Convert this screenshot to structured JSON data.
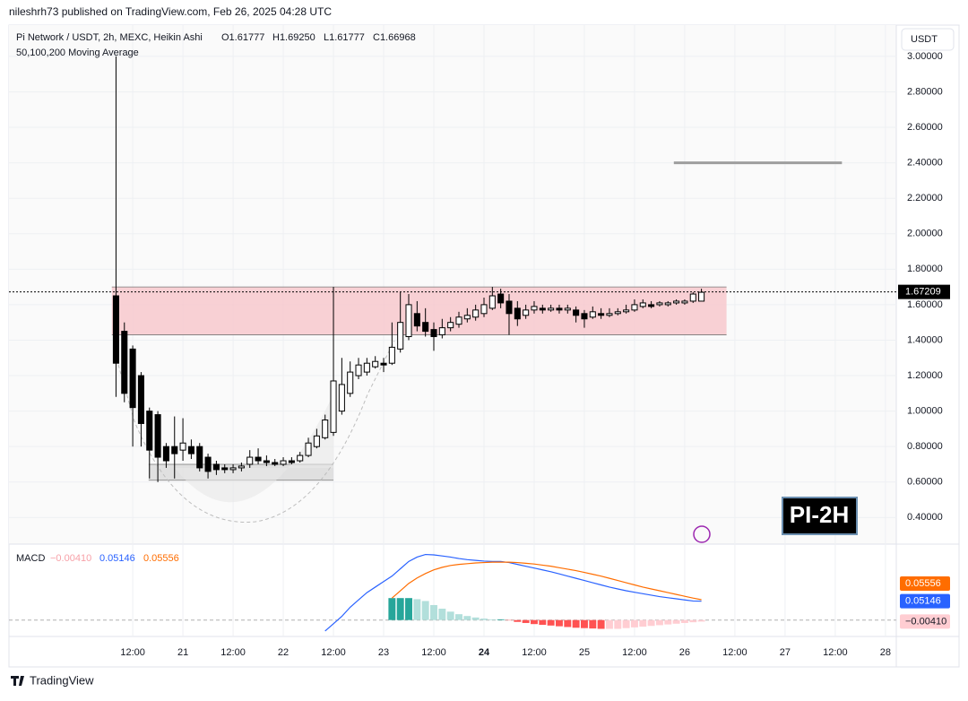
{
  "header": "nileshrh73 published on TradingView.com, Feb 26, 2025 04:28 UTC",
  "footer": "TradingView",
  "chart_data": {
    "type": "candlestick",
    "symbol": "Pi Network / USDT, 2h, MEXC, Heikin Ashi",
    "ohlc_legend": [
      "O1.61777",
      "H1.69250",
      "L1.61777",
      "C1.66968"
    ],
    "indicator": "50,100,200 Moving Average",
    "currency": "USDT",
    "badge": "PI-2H",
    "up_color": "#ffffff",
    "down_color": "#000000",
    "ohlc": [
      [
        1.65,
        3.0,
        1.08,
        1.27
      ],
      [
        1.45,
        1.5,
        1.05,
        1.1
      ],
      [
        1.35,
        1.37,
        0.8,
        1.02
      ],
      [
        1.2,
        1.22,
        0.8,
        0.93
      ],
      [
        1.0,
        1.02,
        0.62,
        0.78
      ],
      [
        0.98,
        1.0,
        0.6,
        0.74
      ],
      [
        0.8,
        0.82,
        0.68,
        0.72
      ],
      [
        0.8,
        0.97,
        0.62,
        0.76
      ],
      [
        0.78,
        0.96,
        0.72,
        0.82
      ],
      [
        0.8,
        0.84,
        0.73,
        0.76
      ],
      [
        0.8,
        0.82,
        0.66,
        0.68
      ],
      [
        0.74,
        0.76,
        0.62,
        0.66
      ],
      [
        0.7,
        0.72,
        0.64,
        0.67
      ],
      [
        0.68,
        0.7,
        0.65,
        0.67
      ],
      [
        0.67,
        0.7,
        0.65,
        0.68
      ],
      [
        0.68,
        0.71,
        0.66,
        0.69
      ],
      [
        0.7,
        0.78,
        0.68,
        0.74
      ],
      [
        0.74,
        0.79,
        0.7,
        0.72
      ],
      [
        0.72,
        0.75,
        0.69,
        0.71
      ],
      [
        0.71,
        0.73,
        0.69,
        0.7
      ],
      [
        0.7,
        0.74,
        0.69,
        0.72
      ],
      [
        0.72,
        0.74,
        0.7,
        0.71
      ],
      [
        0.72,
        0.77,
        0.71,
        0.75
      ],
      [
        0.75,
        0.85,
        0.74,
        0.82
      ],
      [
        0.8,
        0.9,
        0.79,
        0.86
      ],
      [
        0.85,
        0.98,
        0.84,
        0.95
      ],
      [
        0.88,
        1.7,
        0.86,
        1.17
      ],
      [
        1.0,
        1.3,
        0.98,
        1.15
      ],
      [
        1.1,
        1.28,
        1.08,
        1.22
      ],
      [
        1.2,
        1.3,
        1.18,
        1.26
      ],
      [
        1.22,
        1.3,
        1.2,
        1.27
      ],
      [
        1.25,
        1.31,
        1.24,
        1.28
      ],
      [
        1.27,
        1.3,
        1.22,
        1.26
      ],
      [
        1.27,
        1.5,
        1.26,
        1.36
      ],
      [
        1.35,
        1.67,
        1.33,
        1.5
      ],
      [
        1.42,
        1.66,
        1.4,
        1.6
      ],
      [
        1.55,
        1.62,
        1.45,
        1.48
      ],
      [
        1.5,
        1.58,
        1.42,
        1.45
      ],
      [
        1.46,
        1.5,
        1.34,
        1.42
      ],
      [
        1.43,
        1.52,
        1.41,
        1.47
      ],
      [
        1.47,
        1.53,
        1.45,
        1.5
      ],
      [
        1.49,
        1.56,
        1.47,
        1.53
      ],
      [
        1.52,
        1.58,
        1.5,
        1.54
      ],
      [
        1.53,
        1.6,
        1.51,
        1.57
      ],
      [
        1.55,
        1.64,
        1.53,
        1.6
      ],
      [
        1.58,
        1.7,
        1.57,
        1.65
      ],
      [
        1.66,
        1.69,
        1.58,
        1.61
      ],
      [
        1.62,
        1.66,
        1.43,
        1.55
      ],
      [
        1.58,
        1.62,
        1.48,
        1.52
      ],
      [
        1.54,
        1.6,
        1.52,
        1.57
      ],
      [
        1.57,
        1.62,
        1.55,
        1.59
      ],
      [
        1.58,
        1.6,
        1.55,
        1.57
      ],
      [
        1.57,
        1.6,
        1.56,
        1.58
      ],
      [
        1.58,
        1.6,
        1.55,
        1.57
      ],
      [
        1.57,
        1.6,
        1.55,
        1.58
      ],
      [
        1.57,
        1.59,
        1.5,
        1.54
      ],
      [
        1.55,
        1.57,
        1.47,
        1.52
      ],
      [
        1.53,
        1.59,
        1.52,
        1.56
      ],
      [
        1.55,
        1.58,
        1.52,
        1.54
      ],
      [
        1.54,
        1.58,
        1.53,
        1.55
      ],
      [
        1.55,
        1.58,
        1.54,
        1.56
      ],
      [
        1.56,
        1.6,
        1.55,
        1.57
      ],
      [
        1.57,
        1.63,
        1.56,
        1.6
      ],
      [
        1.59,
        1.63,
        1.58,
        1.61
      ],
      [
        1.6,
        1.62,
        1.58,
        1.59
      ],
      [
        1.6,
        1.62,
        1.59,
        1.61
      ],
      [
        1.6,
        1.62,
        1.59,
        1.61
      ],
      [
        1.61,
        1.63,
        1.6,
        1.62
      ],
      [
        1.61,
        1.63,
        1.6,
        1.62
      ],
      [
        1.62,
        1.67,
        1.61,
        1.66
      ],
      [
        1.62,
        1.69,
        1.62,
        1.67
      ]
    ],
    "xlim": [
      -12.8,
      93.3
    ],
    "xticks": [
      {
        "value": 2,
        "label": "12:00"
      },
      {
        "value": 8,
        "label": "21"
      },
      {
        "value": 14,
        "label": "12:00"
      },
      {
        "value": 20,
        "label": "22"
      },
      {
        "value": 26,
        "label": "12:00"
      },
      {
        "value": 32,
        "label": "23"
      },
      {
        "value": 38,
        "label": "12:00"
      },
      {
        "value": 44,
        "label": "24"
      },
      {
        "value": 50,
        "label": "12:00"
      },
      {
        "value": 56,
        "label": "25"
      },
      {
        "value": 62,
        "label": "12:00"
      },
      {
        "value": 68,
        "label": "26"
      },
      {
        "value": 74,
        "label": "12:00"
      },
      {
        "value": 80,
        "label": "27"
      },
      {
        "value": 86,
        "label": "12:00"
      },
      {
        "value": 92,
        "label": "28"
      }
    ],
    "ylim": [
      0.25,
      3.04
    ],
    "yticks": [
      {
        "value": 0.4,
        "label": "0.40000"
      },
      {
        "value": 0.6,
        "label": "0.60000"
      },
      {
        "value": 0.8,
        "label": "0.80000"
      },
      {
        "value": 1.0,
        "label": "1.00000"
      },
      {
        "value": 1.2,
        "label": "1.20000"
      },
      {
        "value": 1.4,
        "label": "1.40000"
      },
      {
        "value": 1.6,
        "label": "1.60000"
      },
      {
        "value": 1.8,
        "label": "1.80000"
      },
      {
        "value": 2.0,
        "label": "2.00000"
      },
      {
        "value": 2.2,
        "label": "2.20000"
      },
      {
        "value": 2.4,
        "label": "2.40000"
      },
      {
        "value": 2.6,
        "label": "2.60000"
      },
      {
        "value": 2.8,
        "label": "2.80000"
      },
      {
        "value": 3.0,
        "label": "3.00000"
      }
    ],
    "grid": true,
    "last_price": {
      "value": 1.67209,
      "label": "1.67209"
    },
    "zones": [
      {
        "ylim": [
          1.43,
          1.7
        ],
        "xlim": [
          -0.5,
          73
        ],
        "color": "#f7c5ca"
      },
      {
        "ylim": [
          0.61,
          0.7
        ],
        "xlim": [
          3.9,
          26
        ],
        "color": "#d9d9d9"
      }
    ],
    "target_line": {
      "value": 2.4,
      "xlim": [
        66.7,
        86.8
      ],
      "color": "#9e9e9e"
    },
    "macd": {
      "title": "MACD",
      "ylim": [
        -0.035,
        0.2
      ],
      "series": [
        {
          "name": "MACD",
          "color": "#2962ff",
          "values": [
            null,
            null,
            null,
            null,
            null,
            null,
            null,
            null,
            null,
            null,
            null,
            null,
            null,
            null,
            null,
            null,
            null,
            null,
            null,
            null,
            null,
            null,
            null,
            null,
            null,
            -0.03,
            -0.01,
            0.01,
            0.035,
            0.055,
            0.075,
            0.09,
            0.105,
            0.12,
            0.14,
            0.16,
            0.172,
            0.179,
            0.178,
            0.175,
            0.172,
            0.168,
            0.165,
            0.163,
            0.161,
            0.16,
            0.16,
            0.157,
            0.152,
            0.147,
            0.142,
            0.137,
            0.132,
            0.126,
            0.12,
            0.114,
            0.108,
            0.102,
            0.096,
            0.09,
            0.085,
            0.08,
            0.076,
            0.072,
            0.068,
            0.064,
            0.061,
            0.058,
            0.055,
            0.052,
            0.05146
          ],
          "last_label": "0.05146"
        },
        {
          "name": "Signal",
          "color": "#ff6d00",
          "values": [
            null,
            null,
            null,
            null,
            null,
            null,
            null,
            null,
            null,
            null,
            null,
            null,
            null,
            null,
            null,
            null,
            null,
            null,
            null,
            null,
            null,
            null,
            null,
            null,
            null,
            null,
            null,
            null,
            null,
            null,
            null,
            null,
            null,
            0.06,
            0.08,
            0.1,
            0.115,
            0.127,
            0.137,
            0.144,
            0.149,
            0.152,
            0.154,
            0.156,
            0.157,
            0.158,
            0.158,
            0.158,
            0.157,
            0.155,
            0.153,
            0.15,
            0.147,
            0.143,
            0.139,
            0.135,
            0.13,
            0.125,
            0.12,
            0.114,
            0.108,
            0.102,
            0.096,
            0.09,
            0.085,
            0.08,
            0.075,
            0.07,
            0.065,
            0.06,
            0.05556
          ],
          "last_label": "0.05556"
        }
      ],
      "histogram": {
        "values": [
          null,
          null,
          null,
          null,
          null,
          null,
          null,
          null,
          null,
          null,
          null,
          null,
          null,
          null,
          null,
          null,
          null,
          null,
          null,
          null,
          null,
          null,
          null,
          null,
          null,
          null,
          null,
          null,
          null,
          null,
          null,
          null,
          null,
          0.06,
          0.06,
          0.06,
          0.057,
          0.052,
          0.041,
          0.031,
          0.023,
          0.016,
          0.011,
          0.007,
          0.004,
          0.002,
          0.002,
          -0.001,
          -0.005,
          -0.008,
          -0.011,
          -0.013,
          -0.015,
          -0.017,
          -0.019,
          -0.021,
          -0.022,
          -0.023,
          -0.024,
          -0.024,
          -0.024,
          -0.022,
          -0.02,
          -0.018,
          -0.016,
          -0.014,
          -0.012,
          -0.01,
          -0.008,
          -0.006,
          -0.0041
        ],
        "last_label": "−0.00410",
        "colors": [
          "#26a69a",
          "#b2dfdb",
          "#ff5252",
          "#ffcdd2"
        ]
      }
    }
  }
}
